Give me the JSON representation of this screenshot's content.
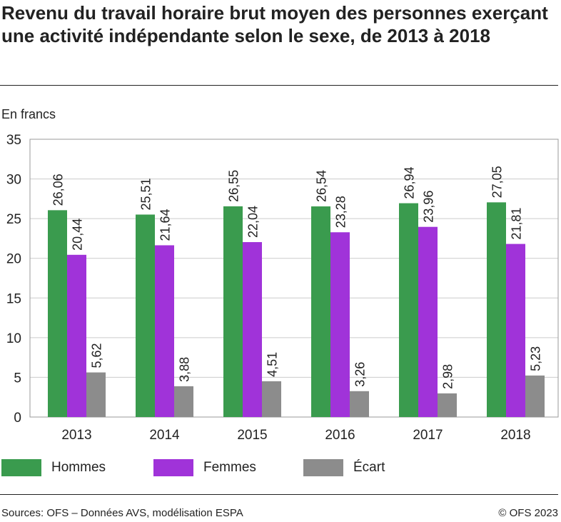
{
  "title": "Revenu du travail horaire brut moyen des personnes exerçant une activité indépendante selon le sexe, de 2013 à 2018",
  "unit_label": "En francs",
  "source": "Sources: OFS – Données AVS, modélisation ESPA",
  "copyright": "© OFS 2023",
  "chart_data": {
    "type": "bar",
    "title": "Revenu du travail horaire brut moyen des personnes exerçant une activité indépendante selon le sexe, de 2013 à 2018",
    "ylabel": "En francs",
    "categories": [
      "2013",
      "2014",
      "2015",
      "2016",
      "2017",
      "2018"
    ],
    "ylim": [
      0,
      35
    ],
    "yticks": [
      0,
      5,
      10,
      15,
      20,
      25,
      30,
      35
    ],
    "grid": true,
    "legend": "bottom",
    "series": [
      {
        "name": "Hommes",
        "color": "#3a9b4e",
        "values": [
          26.06,
          25.51,
          26.55,
          26.54,
          26.94,
          27.05
        ],
        "labels": [
          "26,06",
          "25,51",
          "26,55",
          "26,54",
          "26,94",
          "27,05"
        ]
      },
      {
        "name": "Femmes",
        "color": "#a033d9",
        "values": [
          20.44,
          21.64,
          22.04,
          23.28,
          23.96,
          21.81
        ],
        "labels": [
          "20,44",
          "21,64",
          "22,04",
          "23,28",
          "23,96",
          "21,81"
        ]
      },
      {
        "name": "Écart",
        "color": "#8c8c8c",
        "values": [
          5.62,
          3.88,
          4.51,
          3.26,
          2.98,
          5.23
        ],
        "labels": [
          "5,62",
          "3,88",
          "4,51",
          "3,26",
          "2,98",
          "5,23"
        ]
      }
    ]
  }
}
